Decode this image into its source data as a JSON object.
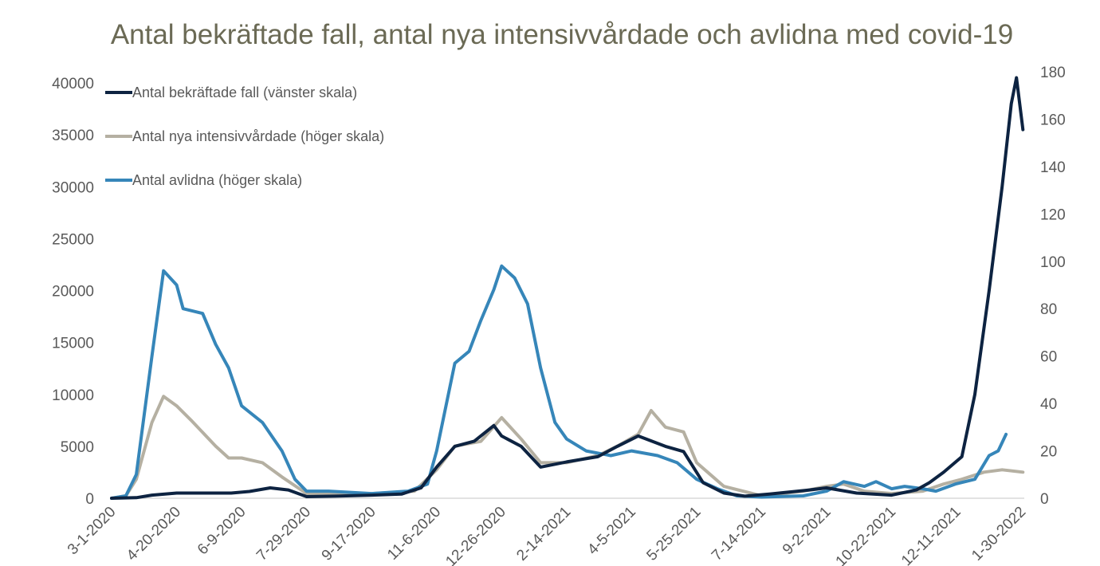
{
  "chart_data": {
    "type": "line",
    "title": "Antal bekräftade fall, antal nya intensivvårdade och avlidna med covid-19",
    "xlabel": "",
    "ylabel_left": "",
    "ylabel_right": "",
    "x_ticks": [
      "3-1-2020",
      "4-20-2020",
      "6-9-2020",
      "7-29-2020",
      "9-17-2020",
      "11-6-2020",
      "12-26-2020",
      "2-14-2021",
      "4-5-2021",
      "5-25-2021",
      "7-14-2021",
      "9-2-2021",
      "10-22-2021",
      "12-11-2021",
      "1-30-2022"
    ],
    "y_left_ticks": [
      0,
      5000,
      10000,
      15000,
      20000,
      25000,
      30000,
      35000,
      40000
    ],
    "y_right_ticks": [
      0,
      20,
      40,
      60,
      80,
      100,
      120,
      140,
      160,
      180
    ],
    "ylim_left": [
      0,
      40000
    ],
    "ylim_right": [
      0,
      180
    ],
    "grid": false,
    "legend_position": "top-left",
    "series": [
      {
        "name": "Antal bekräftade fall (vänster skala)",
        "axis": "left",
        "color": "#0d2341",
        "points": [
          [
            "2020-03-01",
            0
          ],
          [
            "2020-03-20",
            50
          ],
          [
            "2020-04-01",
            300
          ],
          [
            "2020-04-20",
            500
          ],
          [
            "2020-05-10",
            500
          ],
          [
            "2020-06-01",
            500
          ],
          [
            "2020-06-15",
            650
          ],
          [
            "2020-07-01",
            1000
          ],
          [
            "2020-07-15",
            800
          ],
          [
            "2020-07-29",
            150
          ],
          [
            "2020-08-20",
            200
          ],
          [
            "2020-09-17",
            300
          ],
          [
            "2020-10-10",
            400
          ],
          [
            "2020-10-25",
            1000
          ],
          [
            "2020-11-06",
            3000
          ],
          [
            "2020-11-20",
            5000
          ],
          [
            "2020-12-05",
            5500
          ],
          [
            "2020-12-20",
            7000
          ],
          [
            "2020-12-26",
            6000
          ],
          [
            "2021-01-10",
            5000
          ],
          [
            "2021-01-25",
            3000
          ],
          [
            "2021-02-14",
            3500
          ],
          [
            "2021-03-10",
            4000
          ],
          [
            "2021-03-25",
            5000
          ],
          [
            "2021-04-10",
            6000
          ],
          [
            "2021-05-01",
            5000
          ],
          [
            "2021-05-15",
            4500
          ],
          [
            "2021-05-30",
            1500
          ],
          [
            "2021-06-15",
            500
          ],
          [
            "2021-07-01",
            200
          ],
          [
            "2021-07-20",
            400
          ],
          [
            "2021-08-20",
            800
          ],
          [
            "2021-09-02",
            1000
          ],
          [
            "2021-09-25",
            500
          ],
          [
            "2021-10-22",
            300
          ],
          [
            "2021-11-10",
            800
          ],
          [
            "2021-11-20",
            1500
          ],
          [
            "2021-12-01",
            2500
          ],
          [
            "2021-12-15",
            4000
          ],
          [
            "2021-12-25",
            10000
          ],
          [
            "2022-01-05",
            20000
          ],
          [
            "2022-01-15",
            30000
          ],
          [
            "2022-01-22",
            38000
          ],
          [
            "2022-01-26",
            40500
          ],
          [
            "2022-01-31",
            35500
          ]
        ]
      },
      {
        "name": "Antal nya intensivvårdade (höger skala)",
        "axis": "right",
        "color": "#b5b0a2",
        "points": [
          [
            "2020-03-01",
            0
          ],
          [
            "2020-03-12",
            1
          ],
          [
            "2020-03-20",
            8
          ],
          [
            "2020-04-01",
            32
          ],
          [
            "2020-04-10",
            43
          ],
          [
            "2020-04-20",
            39
          ],
          [
            "2020-05-01",
            33
          ],
          [
            "2020-05-20",
            22
          ],
          [
            "2020-05-30",
            17
          ],
          [
            "2020-06-09",
            17
          ],
          [
            "2020-06-25",
            15
          ],
          [
            "2020-07-10",
            9
          ],
          [
            "2020-07-29",
            2
          ],
          [
            "2020-09-17",
            2
          ],
          [
            "2020-10-20",
            3
          ],
          [
            "2020-11-06",
            12
          ],
          [
            "2020-11-20",
            22
          ],
          [
            "2020-12-10",
            24
          ],
          [
            "2020-12-26",
            34
          ],
          [
            "2021-01-10",
            25
          ],
          [
            "2021-01-25",
            15
          ],
          [
            "2021-02-14",
            15
          ],
          [
            "2021-03-10",
            18
          ],
          [
            "2021-03-25",
            22
          ],
          [
            "2021-04-10",
            27
          ],
          [
            "2021-04-20",
            37
          ],
          [
            "2021-05-01",
            30
          ],
          [
            "2021-05-15",
            28
          ],
          [
            "2021-05-25",
            15
          ],
          [
            "2021-06-15",
            5
          ],
          [
            "2021-07-14",
            1
          ],
          [
            "2021-08-15",
            3
          ],
          [
            "2021-09-02",
            5
          ],
          [
            "2021-09-15",
            6
          ],
          [
            "2021-10-01",
            3
          ],
          [
            "2021-10-22",
            2
          ],
          [
            "2021-11-15",
            3
          ],
          [
            "2021-12-01",
            6
          ],
          [
            "2021-12-15",
            8
          ],
          [
            "2022-01-01",
            11
          ],
          [
            "2022-01-15",
            12
          ],
          [
            "2022-01-31",
            11
          ]
        ]
      },
      {
        "name": "Antal avlidna (höger skala)",
        "axis": "right",
        "color": "#3686b9",
        "points": [
          [
            "2020-03-01",
            0
          ],
          [
            "2020-03-12",
            1
          ],
          [
            "2020-03-20",
            10
          ],
          [
            "2020-04-01",
            60
          ],
          [
            "2020-04-10",
            96
          ],
          [
            "2020-04-20",
            90
          ],
          [
            "2020-04-25",
            80
          ],
          [
            "2020-05-10",
            78
          ],
          [
            "2020-05-20",
            65
          ],
          [
            "2020-05-30",
            55
          ],
          [
            "2020-06-09",
            39
          ],
          [
            "2020-06-25",
            32
          ],
          [
            "2020-07-10",
            20
          ],
          [
            "2020-07-20",
            8
          ],
          [
            "2020-07-29",
            3
          ],
          [
            "2020-08-15",
            3
          ],
          [
            "2020-09-17",
            2
          ],
          [
            "2020-10-15",
            3
          ],
          [
            "2020-10-30",
            6
          ],
          [
            "2020-11-06",
            20
          ],
          [
            "2020-11-20",
            57
          ],
          [
            "2020-12-01",
            62
          ],
          [
            "2020-12-10",
            75
          ],
          [
            "2020-12-20",
            88
          ],
          [
            "2020-12-26",
            98
          ],
          [
            "2021-01-05",
            93
          ],
          [
            "2021-01-15",
            82
          ],
          [
            "2021-01-25",
            55
          ],
          [
            "2021-02-05",
            32
          ],
          [
            "2021-02-14",
            25
          ],
          [
            "2021-03-01",
            20
          ],
          [
            "2021-03-20",
            18
          ],
          [
            "2021-04-05",
            20
          ],
          [
            "2021-04-25",
            18
          ],
          [
            "2021-05-10",
            15
          ],
          [
            "2021-05-25",
            8
          ],
          [
            "2021-06-10",
            4
          ],
          [
            "2021-06-25",
            1
          ],
          [
            "2021-07-14",
            0.5
          ],
          [
            "2021-08-15",
            1
          ],
          [
            "2021-09-02",
            3
          ],
          [
            "2021-09-15",
            7
          ],
          [
            "2021-10-01",
            5
          ],
          [
            "2021-10-10",
            7
          ],
          [
            "2021-10-22",
            4
          ],
          [
            "2021-11-01",
            5
          ],
          [
            "2021-11-15",
            4
          ],
          [
            "2021-11-25",
            3
          ],
          [
            "2021-12-10",
            6
          ],
          [
            "2021-12-25",
            8
          ],
          [
            "2022-01-05",
            18
          ],
          [
            "2022-01-12",
            20
          ],
          [
            "2022-01-18",
            27
          ]
        ]
      }
    ]
  }
}
